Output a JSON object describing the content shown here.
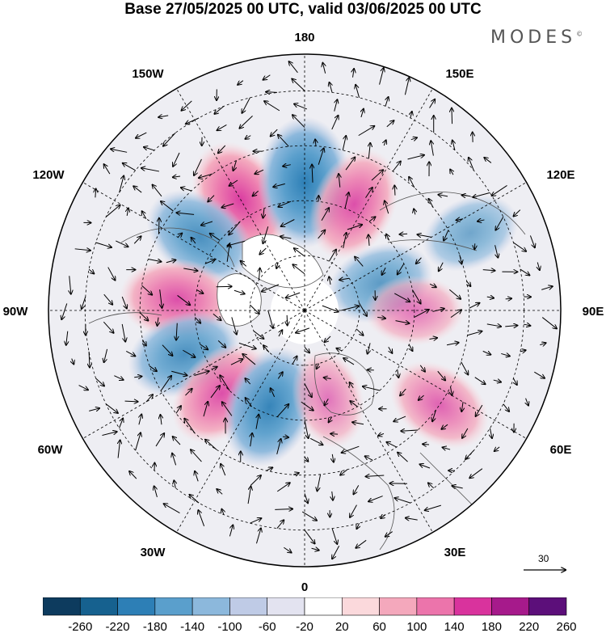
{
  "title": "Base 27/05/2025 00 UTC, valid 03/06/2025 00 UTC",
  "brand": "MODES",
  "brand_mark": "©",
  "longitude_labels": {
    "lon_180": "180",
    "lon_150e": "150E",
    "lon_120e": "120E",
    "lon_90e": "90E",
    "lon_60e": "60E",
    "lon_30e": "30E",
    "lon_0": "0",
    "lon_30w": "30W",
    "lon_60w": "60W",
    "lon_90w": "90W",
    "lon_120w": "120W",
    "lon_150w": "150W"
  },
  "vector_scale": {
    "label": "30"
  },
  "colorbar": {
    "labels": [
      "-260",
      "-220",
      "-180",
      "-140",
      "-100",
      "-60",
      "-20",
      "20",
      "60",
      "100",
      "140",
      "180",
      "220",
      "260"
    ],
    "colors": [
      "#0d3b5e",
      "#16618f",
      "#2d7fb6",
      "#5a9fcc",
      "#8cb8dc",
      "#bfcbe6",
      "#e3e3f0",
      "#ffffff",
      "#fbd9dc",
      "#f4a8bc",
      "#ec74ab",
      "#d9339d",
      "#a61a8b",
      "#5c0f7a"
    ]
  },
  "anomaly_features": [
    {
      "name": "high-north-pacific-west",
      "lon": -150,
      "lat": 55,
      "sign": "positive",
      "level": 180
    },
    {
      "name": "low-north-pacific-center",
      "lon": 180,
      "lat": 55,
      "sign": "negative",
      "level": -220
    },
    {
      "name": "high-north-pacific-east",
      "lon": 155,
      "lat": 58,
      "sign": "positive",
      "level": 140
    },
    {
      "name": "low-gulf-of-alaska",
      "lon": -125,
      "lat": 55,
      "sign": "negative",
      "level": -140
    },
    {
      "name": "high-hudson-bay",
      "lon": -95,
      "lat": 55,
      "sign": "positive",
      "level": 140
    },
    {
      "name": "low-labrador",
      "lon": -70,
      "lat": 55,
      "sign": "negative",
      "level": -140
    },
    {
      "name": "high-north-atlantic",
      "lon": -45,
      "lat": 58,
      "sign": "positive",
      "level": 140
    },
    {
      "name": "low-iceland",
      "lon": -20,
      "lat": 62,
      "sign": "negative",
      "level": -180
    },
    {
      "name": "high-scandinavia",
      "lon": 15,
      "lat": 65,
      "sign": "positive",
      "level": 60
    },
    {
      "name": "high-caspian",
      "lon": 55,
      "lat": 45,
      "sign": "positive",
      "level": 100
    },
    {
      "name": "low-central-siberia",
      "lon": 110,
      "lat": 68,
      "sign": "negative",
      "level": -100
    },
    {
      "name": "high-siberia",
      "lon": 90,
      "lat": 60,
      "sign": "positive",
      "level": 60
    },
    {
      "name": "low-east-asia",
      "lon": 115,
      "lat": 40,
      "sign": "negative",
      "level": -60
    }
  ]
}
